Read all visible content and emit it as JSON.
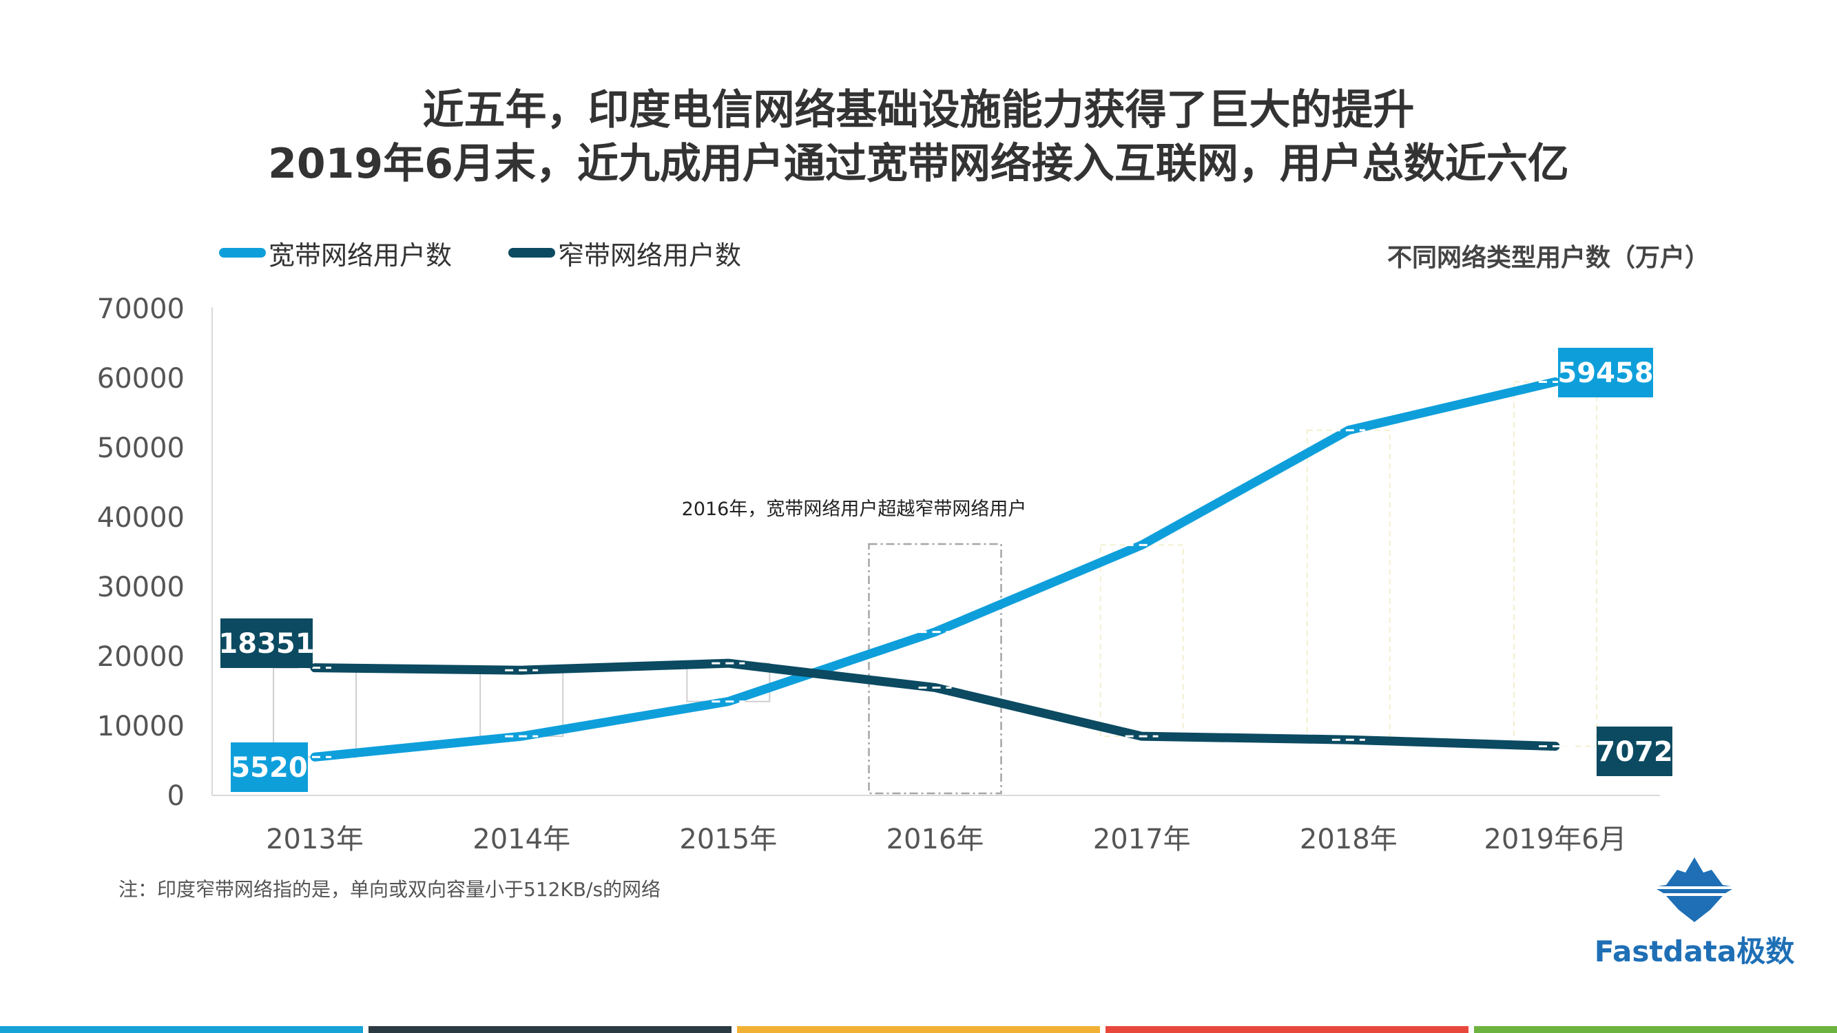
{
  "title_line1": "近五年，印度电信网络基础设施能力获得了巨大的提升",
  "title_line2": "2019年6月末，近九成用户通过宽带网络接入互联网，用户总数近六亿",
  "unit_label": "不同网络类型用户数（万户）",
  "footnote": "注：印度窄带网络指的是，单向或双向容量小于512KB/s的网络",
  "brand": "Fastdata极数",
  "brand_icon": "iceberg-logo-icon",
  "bottom_bar_colors": [
    "#17A2D8",
    "#2B3A42",
    "#F2B134",
    "#E8473C",
    "#6DB33F"
  ],
  "chart_data": {
    "type": "line",
    "categories": [
      "2013年",
      "2014年",
      "2015年",
      "2016年",
      "2017年",
      "2018年",
      "2019年6月"
    ],
    "ylim": [
      0,
      70000
    ],
    "yticks": [
      0,
      10000,
      20000,
      30000,
      40000,
      50000,
      60000,
      70000
    ],
    "grid": false,
    "legend_position": "top-left",
    "series": [
      {
        "name": "宽带网络用户数",
        "color": "#0E9FDB",
        "values": [
          5520,
          8500,
          13500,
          23500,
          36000,
          52500,
          59458
        ]
      },
      {
        "name": "窄带网络用户数",
        "color": "#0B4A61",
        "values": [
          18351,
          18000,
          19000,
          15500,
          8500,
          8000,
          7072
        ]
      }
    ],
    "data_labels": [
      {
        "series": 0,
        "index": 0,
        "text": "5520"
      },
      {
        "series": 0,
        "index": 6,
        "text": "59458"
      },
      {
        "series": 1,
        "index": 0,
        "text": "18351"
      },
      {
        "series": 1,
        "index": 6,
        "text": "7072"
      }
    ],
    "annotation": {
      "text": "2016年，宽带网络用户超越窄带网络用户",
      "category_index": 3
    }
  }
}
